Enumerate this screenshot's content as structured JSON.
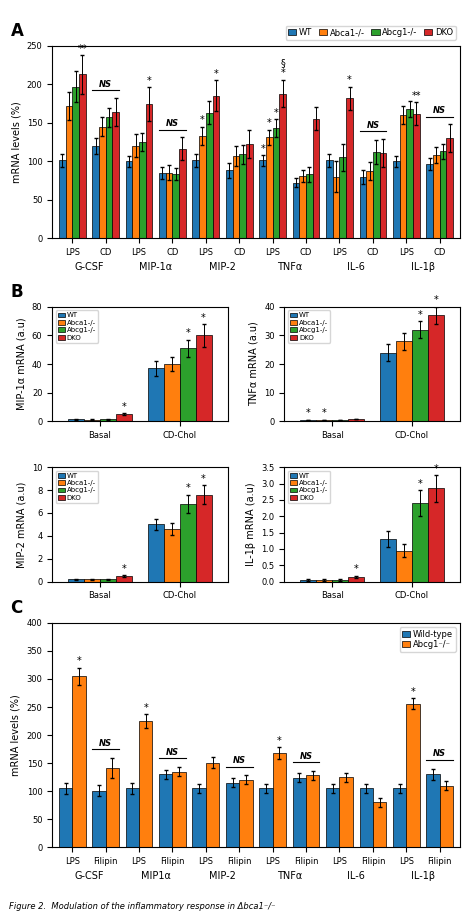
{
  "chart_data": [
    {
      "type": "bar",
      "title": "A",
      "ylabel": "mRNA levels (%)",
      "categories": [
        "LPS",
        "CD",
        "LPS",
        "CD",
        "LPS",
        "CD",
        "LPS",
        "CD",
        "LPS",
        "CD",
        "LPS",
        "CD"
      ],
      "groups": [
        "G-CSF",
        "MIP-1α",
        "MIP-2",
        "TNFα",
        "IL-6",
        "IL-1β"
      ],
      "series": [
        {
          "name": "WT",
          "values": [
            101,
            120,
            100,
            85,
            101,
            88,
            101,
            72,
            101,
            79,
            100,
            96
          ],
          "errors": [
            8,
            10,
            7,
            8,
            8,
            10,
            7,
            6,
            8,
            9,
            7,
            8
          ]
        },
        {
          "name": "Abca1-/-",
          "values": [
            172,
            145,
            120,
            85,
            133,
            107,
            131,
            81,
            80,
            87,
            160,
            108
          ],
          "errors": [
            18,
            12,
            15,
            10,
            12,
            13,
            10,
            8,
            20,
            12,
            12,
            10
          ]
        },
        {
          "name": "Abcg1-/-",
          "values": [
            197,
            157,
            125,
            83,
            163,
            109,
            143,
            83,
            105,
            112,
            168,
            113
          ],
          "errors": [
            20,
            12,
            12,
            8,
            15,
            12,
            12,
            10,
            18,
            15,
            10,
            10
          ]
        },
        {
          "name": "DKO",
          "values": [
            213,
            164,
            174,
            116,
            185,
            122,
            188,
            155,
            182,
            111,
            162,
            130
          ],
          "errors": [
            25,
            18,
            22,
            15,
            20,
            18,
            18,
            15,
            15,
            18,
            15,
            18
          ]
        }
      ],
      "ylim": [
        0,
        250
      ],
      "yticks": [
        0,
        50,
        100,
        150,
        200,
        250
      ],
      "annotations": [
        {
          "text": "**",
          "category": 0,
          "series": "DKO"
        },
        {
          "text": "NS",
          "category": 1
        },
        {
          "text": "*",
          "category": 2,
          "series": "DKO"
        },
        {
          "text": "NS",
          "category": 3
        },
        {
          "text": "*",
          "category": 4,
          "series": "DKO"
        },
        {
          "text": "*",
          "category": 4,
          "series": "Abca1-/-"
        },
        {
          "text": "*",
          "category": 6,
          "series": "DKO"
        },
        {
          "text": "*",
          "category": 6,
          "series": "WT"
        },
        {
          "text": "*",
          "category": 6,
          "series": "Abca1-/-"
        },
        {
          "text": "*",
          "category": 6,
          "series": "Abcg1-/-"
        },
        {
          "text": "§",
          "category": 6,
          "series": "DKO"
        },
        {
          "text": "*",
          "category": 8,
          "series": "DKO"
        },
        {
          "text": "NS",
          "category": 9
        },
        {
          "text": "**",
          "category": 10,
          "series": "DKO"
        },
        {
          "text": "NS",
          "category": 11
        }
      ]
    },
    {
      "type": "bar",
      "title": "B",
      "ylabel": "MIP-1α mRNA (a.u)",
      "legend": "upper left",
      "categories": [
        "Basal",
        "CD-Chol"
      ],
      "series": [
        {
          "name": "WT",
          "values": [
            1.5,
            37
          ],
          "errors": [
            0.3,
            5
          ]
        },
        {
          "name": "Abca1-/-",
          "values": [
            1.2,
            40
          ],
          "errors": [
            0.3,
            5
          ]
        },
        {
          "name": "Abcg1-/-",
          "values": [
            1.5,
            51
          ],
          "errors": [
            0.3,
            6
          ]
        },
        {
          "name": "DKO",
          "values": [
            5.0,
            60
          ],
          "errors": [
            0.8,
            8
          ]
        }
      ],
      "ylim": [
        0,
        80
      ],
      "yticks": [
        0,
        20,
        40,
        60,
        80
      ],
      "annotations": [
        {
          "text": "*",
          "category": 0,
          "series": "DKO"
        },
        {
          "text": "*",
          "category": 1,
          "series": "Abcg1-/-"
        },
        {
          "text": "*",
          "category": 1,
          "series": "DKO"
        }
      ]
    },
    {
      "type": "bar",
      "ylabel": "TNFα mRNA (a.u)",
      "legend": "upper left",
      "categories": [
        "Basal",
        "CD-Chol"
      ],
      "series": [
        {
          "name": "WT",
          "values": [
            0.5,
            24
          ],
          "errors": [
            0.1,
            3
          ]
        },
        {
          "name": "Abca1-/-",
          "values": [
            0.5,
            28
          ],
          "errors": [
            0.1,
            3
          ]
        },
        {
          "name": "Abcg1-/-",
          "values": [
            0.5,
            32
          ],
          "errors": [
            0.1,
            3
          ]
        },
        {
          "name": "DKO",
          "values": [
            0.8,
            37
          ],
          "errors": [
            0.1,
            3
          ]
        }
      ],
      "ylim": [
        0,
        40
      ],
      "yticks": [
        0,
        10,
        20,
        30,
        40
      ],
      "annotations": [
        {
          "text": "*",
          "category": 0,
          "series": "WT"
        },
        {
          "text": "*",
          "category": 0,
          "series": "Abca1-/-"
        },
        {
          "text": "*",
          "category": 1,
          "series": "Abcg1-/-"
        },
        {
          "text": "*",
          "category": 1,
          "series": "DKO"
        }
      ]
    },
    {
      "type": "bar",
      "ylabel": "MIP-2 mRNA (a.u)",
      "legend": "upper left",
      "categories": [
        "Basal",
        "CD-Chol"
      ],
      "series": [
        {
          "name": "WT",
          "values": [
            0.2,
            5.0
          ],
          "errors": [
            0.05,
            0.5
          ]
        },
        {
          "name": "Abca1-/-",
          "values": [
            0.2,
            4.6
          ],
          "errors": [
            0.05,
            0.5
          ]
        },
        {
          "name": "Abcg1-/-",
          "values": [
            0.2,
            6.8
          ],
          "errors": [
            0.05,
            0.8
          ]
        },
        {
          "name": "DKO",
          "values": [
            0.5,
            7.6
          ],
          "errors": [
            0.08,
            0.8
          ]
        }
      ],
      "ylim": [
        0,
        10
      ],
      "yticks": [
        0,
        2,
        4,
        6,
        8,
        10
      ],
      "annotations": [
        {
          "text": "*",
          "category": 0,
          "series": "DKO"
        },
        {
          "text": "*",
          "category": 1,
          "series": "Abcg1-/-"
        },
        {
          "text": "*",
          "category": 1,
          "series": "DKO"
        }
      ]
    },
    {
      "type": "bar",
      "ylabel": "IL-1β mRNA (a.u)",
      "legend": "upper left",
      "categories": [
        "Basal",
        "CD-Chol"
      ],
      "series": [
        {
          "name": "WT",
          "values": [
            0.05,
            1.3
          ],
          "errors": [
            0.02,
            0.25
          ]
        },
        {
          "name": "Abca1-/-",
          "values": [
            0.05,
            0.95
          ],
          "errors": [
            0.02,
            0.2
          ]
        },
        {
          "name": "Abcg1-/-",
          "values": [
            0.05,
            2.4
          ],
          "errors": [
            0.02,
            0.4
          ]
        },
        {
          "name": "DKO",
          "values": [
            0.15,
            2.85
          ],
          "errors": [
            0.03,
            0.4
          ]
        }
      ],
      "ylim": [
        0,
        3.5
      ],
      "yticks": [
        0.0,
        0.5,
        1.0,
        1.5,
        2.0,
        2.5,
        3.0,
        3.5
      ],
      "annotations": [
        {
          "text": "*",
          "category": 0,
          "series": "DKO"
        },
        {
          "text": "*",
          "category": 1,
          "series": "Abcg1-/-"
        },
        {
          "text": "*",
          "category": 1,
          "series": "DKO"
        }
      ]
    },
    {
      "type": "bar",
      "title": "C",
      "ylabel": "mRNA levels (%)",
      "legend": "upper right",
      "categories": [
        "LPS",
        "Filipin",
        "LPS",
        "Filipin",
        "LPS",
        "Filipin",
        "LPS",
        "Filipin",
        "LPS",
        "Filipin",
        "LPS",
        "Filipin"
      ],
      "groups": [
        "G-CSF",
        "MIP1α",
        "MIP-2",
        "TNFα",
        "IL-6",
        "IL-1β"
      ],
      "series": [
        {
          "name": "Wild-type",
          "values": [
            105,
            101,
            105,
            130,
            105,
            115,
            105,
            124,
            105,
            105,
            105,
            130
          ],
          "errors": [
            10,
            10,
            10,
            8,
            8,
            8,
            8,
            8,
            8,
            8,
            8,
            10
          ]
        },
        {
          "name": "Abcg1⁻/⁻",
          "values": [
            305,
            141,
            225,
            135,
            151,
            120,
            168,
            128,
            125,
            80,
            256,
            110
          ],
          "errors": [
            15,
            18,
            12,
            8,
            10,
            8,
            10,
            8,
            8,
            8,
            10,
            8
          ]
        }
      ],
      "ylim": [
        0,
        400
      ],
      "yticks": [
        0,
        50,
        100,
        150,
        200,
        250,
        300,
        350,
        400
      ],
      "annotations": [
        {
          "text": "*",
          "category": 0,
          "series": "Abcg1⁻/⁻"
        },
        {
          "text": "NS",
          "category": 1
        },
        {
          "text": "*",
          "category": 2,
          "series": "Abcg1⁻/⁻"
        },
        {
          "text": "NS",
          "category": 3
        },
        {
          "text": "NS",
          "category": 5
        },
        {
          "text": "*",
          "category": 6,
          "series": "Abcg1⁻/⁻"
        },
        {
          "text": "NS",
          "category": 7
        },
        {
          "text": "*",
          "category": 10,
          "series": "Abcg1⁻/⁻"
        },
        {
          "text": "NS",
          "category": 11
        }
      ]
    }
  ],
  "caption": "Figure 2.  Modulation of the inflammatory response in Δbca1⁻/⁻"
}
